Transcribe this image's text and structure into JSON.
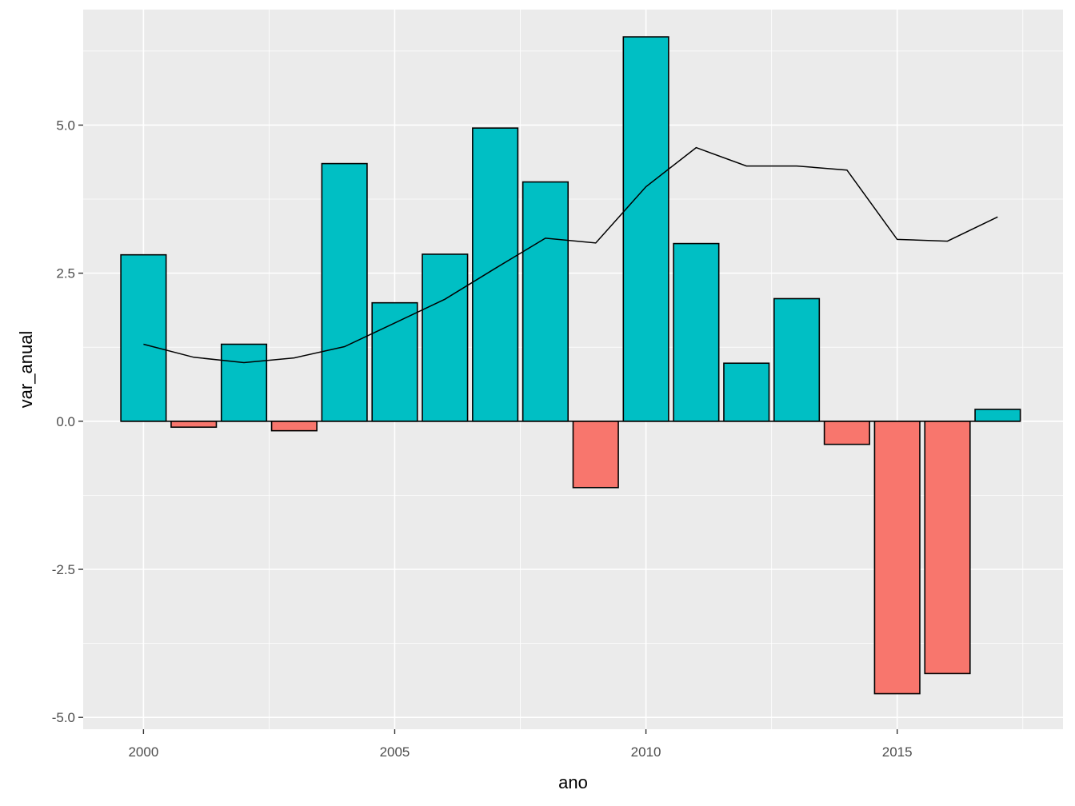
{
  "chart_data": {
    "type": "bar",
    "xlabel": "ano",
    "ylabel": "var_anual",
    "x": [
      2000,
      2001,
      2002,
      2003,
      2004,
      2005,
      2006,
      2007,
      2008,
      2009,
      2010,
      2011,
      2012,
      2013,
      2014,
      2015,
      2016,
      2017
    ],
    "values": [
      2.81,
      -0.1,
      1.3,
      -0.16,
      4.35,
      2.0,
      2.82,
      4.95,
      4.04,
      -1.12,
      6.49,
      3.0,
      0.98,
      2.07,
      -0.39,
      -4.6,
      -4.26,
      0.2
    ],
    "line": {
      "x": [
        2000,
        2001,
        2002,
        2003,
        2004,
        2005,
        2006,
        2007,
        2008,
        2009,
        2010,
        2011,
        2012,
        2013,
        2014,
        2015,
        2016,
        2017
      ],
      "y": [
        1.3,
        1.08,
        0.99,
        1.07,
        1.26,
        1.66,
        2.06,
        2.58,
        3.09,
        3.01,
        3.96,
        4.62,
        4.31,
        4.31,
        4.24,
        3.07,
        3.04,
        3.45
      ]
    },
    "xlim": [
      1998.8,
      2018.3
    ],
    "ylim": [
      -5.2,
      6.95
    ],
    "x_ticks": [
      2000,
      2005,
      2010,
      2015
    ],
    "x_tick_labels": [
      "2000",
      "2005",
      "2010",
      "2015"
    ],
    "y_ticks": [
      -5.0,
      -2.5,
      0.0,
      2.5,
      5.0
    ],
    "y_tick_labels": [
      "-5.0",
      "-2.5",
      "0.0",
      "2.5",
      "5.0"
    ],
    "grid": true,
    "colors": {
      "positive": "#00BFC4",
      "negative": "#F8766D",
      "panel": "#EBEBEB",
      "grid": "#FFFFFF",
      "outline": "#000000"
    }
  }
}
